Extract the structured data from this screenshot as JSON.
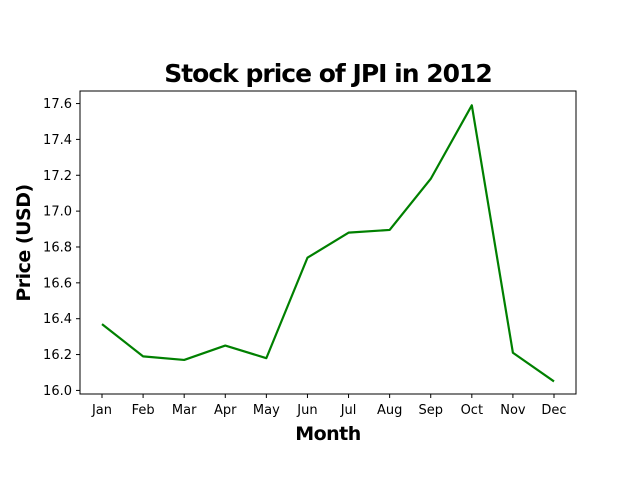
{
  "chart_data": {
    "type": "line",
    "title": "Stock price of JPI in 2012",
    "xlabel": "Month",
    "ylabel": "Price (USD)",
    "categories": [
      "Jan",
      "Feb",
      "Mar",
      "Apr",
      "May",
      "Jun",
      "Jul",
      "Aug",
      "Sep",
      "Oct",
      "Nov",
      "Dec"
    ],
    "series": [
      {
        "values": [
          16.37,
          16.19,
          16.17,
          16.25,
          16.18,
          16.74,
          16.88,
          16.895,
          17.18,
          17.59,
          16.21,
          16.05
        ],
        "color": "#008000"
      }
    ],
    "ylim": [
      15.98,
      17.67
    ],
    "yticks": [
      16.0,
      16.2,
      16.4,
      16.6,
      16.8,
      17.0,
      17.2,
      17.4,
      17.6
    ],
    "ytick_labels": [
      "16.0",
      "16.2",
      "16.4",
      "16.6",
      "16.8",
      "17.0",
      "17.2",
      "17.4",
      "17.6"
    ],
    "grid": false,
    "legend": "none"
  }
}
